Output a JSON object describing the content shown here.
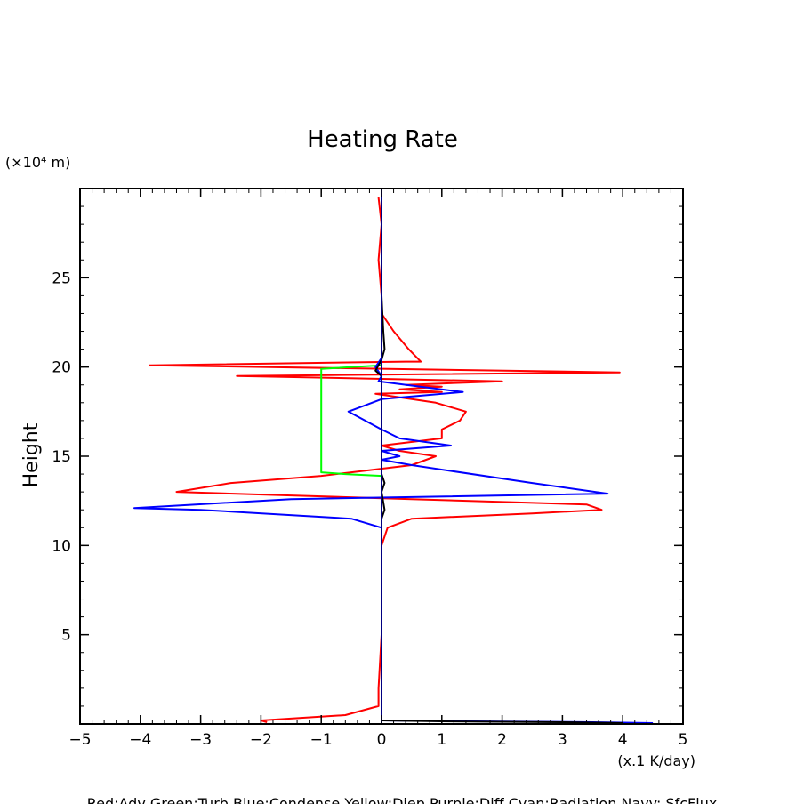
{
  "chart_data": {
    "type": "line",
    "title": "Heating Rate",
    "ylabel": "Height",
    "yunit": "(×10⁴ m)",
    "xunit": "(x.1 K/day)",
    "xlim": [
      -5,
      5
    ],
    "ylim": [
      0,
      30
    ],
    "xticks": [
      -5,
      -4,
      -3,
      -2,
      -1,
      0,
      1,
      2,
      3,
      4,
      5
    ],
    "xtick_labels": [
      "−5",
      "−4",
      "−3",
      "−2",
      "−1",
      "0",
      "1",
      "2",
      "3",
      "4",
      "5"
    ],
    "yticks": [
      5,
      10,
      15,
      20,
      25
    ],
    "ytick_labels": [
      "5",
      "10",
      "15",
      "20",
      "25"
    ],
    "grid": false,
    "legend_text": "Red:Adv Green:Turb Blue:Condense Yellow:Diep Purple:Diff Cyan:Radiation Navy: SfcFlux",
    "series": [
      {
        "color": "#ff0000",
        "points": [
          [
            -0.05,
            29.5
          ],
          [
            0.0,
            28.0
          ],
          [
            -0.05,
            26.0
          ],
          [
            0.0,
            24.0
          ],
          [
            0.0,
            23.0
          ],
          [
            0.2,
            22.0
          ],
          [
            0.45,
            21.0
          ],
          [
            0.65,
            20.3
          ],
          [
            0.4,
            20.3
          ],
          [
            -3.85,
            20.1
          ],
          [
            3.95,
            19.7
          ],
          [
            -2.4,
            19.5
          ],
          [
            2.0,
            19.2
          ],
          [
            0.4,
            19.0
          ],
          [
            1.0,
            18.9
          ],
          [
            0.3,
            18.75
          ],
          [
            1.0,
            18.6
          ],
          [
            -0.1,
            18.5
          ],
          [
            0.9,
            18.0
          ],
          [
            1.4,
            17.5
          ],
          [
            1.3,
            17.0
          ],
          [
            1.0,
            16.5
          ],
          [
            1.0,
            16.0
          ],
          [
            0.0,
            15.6
          ],
          [
            0.3,
            15.3
          ],
          [
            0.9,
            15.0
          ],
          [
            0.5,
            14.5
          ],
          [
            -0.5,
            14.1
          ],
          [
            -1.0,
            13.9
          ],
          [
            -2.5,
            13.5
          ],
          [
            -3.4,
            13.0
          ],
          [
            -1.5,
            12.8
          ],
          [
            0.5,
            12.6
          ],
          [
            3.4,
            12.3
          ],
          [
            3.65,
            12.0
          ],
          [
            2.5,
            11.8
          ],
          [
            0.5,
            11.5
          ],
          [
            0.1,
            11.0
          ],
          [
            0.0,
            10.0
          ],
          [
            0.0,
            5.0
          ],
          [
            -0.05,
            2.0
          ],
          [
            -0.05,
            1.0
          ],
          [
            -0.6,
            0.5
          ],
          [
            -2.0,
            0.2
          ],
          [
            -1.9,
            0.1
          ]
        ]
      },
      {
        "color": "#00ff00",
        "points": [
          [
            0.0,
            20.1
          ],
          [
            -1.0,
            19.9
          ],
          [
            -1.0,
            14.1
          ],
          [
            -0.6,
            14.0
          ],
          [
            0.0,
            13.9
          ]
        ]
      },
      {
        "color": "#0000ff",
        "points": [
          [
            0.0,
            29.5
          ],
          [
            0.0,
            20.5
          ],
          [
            -0.1,
            20.0
          ],
          [
            0.0,
            19.5
          ],
          [
            -0.05,
            19.2
          ],
          [
            1.35,
            18.6
          ],
          [
            0.0,
            18.2
          ],
          [
            -0.55,
            17.5
          ],
          [
            0.0,
            16.5
          ],
          [
            0.3,
            16.0
          ],
          [
            1.15,
            15.6
          ],
          [
            0.0,
            15.3
          ],
          [
            0.3,
            15.0
          ],
          [
            0.0,
            14.8
          ],
          [
            0.5,
            14.5
          ],
          [
            2.5,
            13.5
          ],
          [
            3.75,
            12.9
          ],
          [
            -1.5,
            12.6
          ],
          [
            -4.1,
            12.1
          ],
          [
            -3.0,
            12.0
          ],
          [
            -0.5,
            11.5
          ],
          [
            0.0,
            11.0
          ],
          [
            0.0,
            0.2
          ],
          [
            1.5,
            0.15
          ],
          [
            3.5,
            0.1
          ],
          [
            4.5,
            0.05
          ]
        ]
      },
      {
        "color": "#000000",
        "points": [
          [
            0.0,
            29.5
          ],
          [
            0.0,
            24.0
          ],
          [
            0.03,
            22.0
          ],
          [
            0.05,
            21.0
          ],
          [
            0.0,
            20.4
          ],
          [
            -0.1,
            19.8
          ],
          [
            0.0,
            19.5
          ],
          [
            0.0,
            14.0
          ],
          [
            0.05,
            13.5
          ],
          [
            0.0,
            13.0
          ],
          [
            0.05,
            12.0
          ],
          [
            0.0,
            11.5
          ],
          [
            0.0,
            0.2
          ],
          [
            1.0,
            0.15
          ],
          [
            3.0,
            0.1
          ],
          [
            4.0,
            0.05
          ]
        ]
      },
      {
        "color": "#000080",
        "points": [
          [
            0.0,
            30.0
          ],
          [
            0.0,
            0.0
          ]
        ]
      }
    ]
  }
}
